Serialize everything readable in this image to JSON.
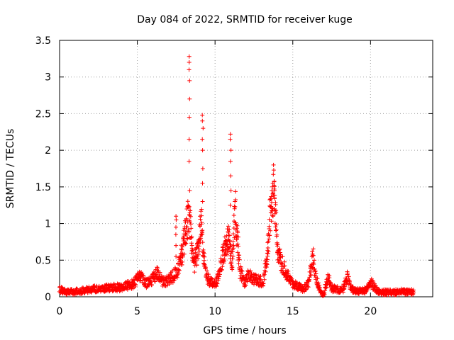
{
  "chart_data": {
    "type": "scatter",
    "title": "Day 084 of 2022, SRMTID for receiver kuge",
    "xlabel": "GPS time / hours",
    "ylabel": "SRMTID / TECUs",
    "xlim": [
      0,
      24
    ],
    "ylim": [
      0,
      3.5
    ],
    "grid": true,
    "marker": "plus",
    "color": "#ff0000",
    "xticks": [
      0,
      5,
      10,
      15,
      20
    ],
    "yticks": [
      0,
      0.5,
      1,
      1.5,
      2,
      2.5,
      3,
      3.5
    ],
    "xtick_labels": [
      "0",
      "5",
      "10",
      "15",
      "20"
    ],
    "ytick_labels": [
      "0",
      "0.5",
      "1",
      "1.5",
      "2",
      "2.5",
      "3",
      "3.5"
    ],
    "series": [
      {
        "name": "kuge",
        "profile_hours": [
          0.0,
          0.5,
          1.0,
          2.0,
          3.0,
          4.0,
          4.8,
          5.2,
          5.6,
          5.9,
          6.3,
          6.6,
          7.0,
          7.5,
          7.9,
          8.1,
          8.3,
          8.45,
          8.6,
          8.9,
          9.1,
          9.3,
          9.5,
          9.7,
          10.0,
          10.3,
          10.6,
          10.9,
          11.1,
          11.3,
          11.6,
          11.9,
          12.2,
          12.5,
          12.8,
          13.1,
          13.4,
          13.6,
          13.8,
          14.0,
          14.3,
          14.6,
          14.9,
          15.3,
          15.7,
          16.0,
          16.3,
          16.5,
          16.8,
          17.0,
          17.3,
          17.5,
          17.8,
          18.2,
          18.5,
          18.8,
          19.2,
          19.7,
          20.0,
          20.5,
          21.0,
          21.5,
          22.0,
          22.5,
          22.8
        ],
        "profile_values": [
          0.1,
          0.06,
          0.07,
          0.1,
          0.12,
          0.13,
          0.18,
          0.3,
          0.18,
          0.22,
          0.32,
          0.2,
          0.22,
          0.32,
          0.62,
          0.9,
          1.15,
          0.9,
          0.4,
          0.65,
          1.05,
          0.5,
          0.25,
          0.2,
          0.15,
          0.35,
          0.65,
          0.8,
          0.45,
          1.2,
          0.35,
          0.2,
          0.3,
          0.25,
          0.22,
          0.2,
          0.65,
          1.3,
          1.5,
          0.6,
          0.45,
          0.3,
          0.2,
          0.15,
          0.1,
          0.2,
          0.55,
          0.25,
          0.05,
          0.03,
          0.3,
          0.12,
          0.1,
          0.08,
          0.28,
          0.1,
          0.07,
          0.09,
          0.2,
          0.07,
          0.06,
          0.06,
          0.07,
          0.06,
          0.07
        ],
        "spikes": [
          {
            "x": 7.5,
            "values": [
              0.55,
              0.7,
              0.85,
              0.95,
              1.05,
              1.1
            ]
          },
          {
            "x": 8.35,
            "values": [
              1.45,
              1.85,
              2.15,
              2.45,
              2.7,
              2.95,
              3.1,
              3.2,
              3.28
            ]
          },
          {
            "x": 9.2,
            "values": [
              1.3,
              1.55,
              1.75,
              2.0,
              2.15,
              2.3,
              2.4,
              2.48
            ]
          },
          {
            "x": 11.0,
            "values": [
              1.25,
              1.45,
              1.65,
              1.85,
              2.0,
              2.15,
              2.22
            ]
          },
          {
            "x": 13.8,
            "values": [
              1.35,
              1.45,
              1.52,
              1.57
            ]
          }
        ]
      }
    ]
  }
}
